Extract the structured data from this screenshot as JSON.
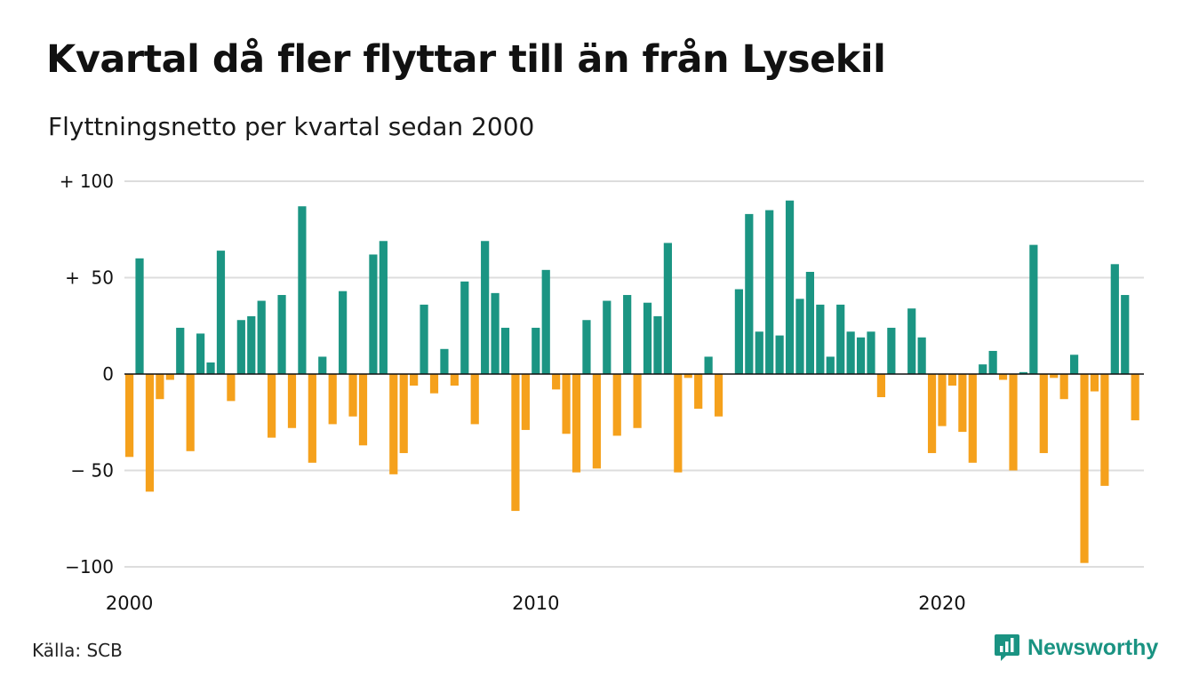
{
  "title": "Kvartal då fler flyttar till än från Lysekil",
  "subtitle": "Flyttningsnetto per kvartal sedan 2000",
  "source": "Källa: SCB",
  "brand": {
    "name": "Newsworthy",
    "icon": "newsworthy-logo-icon"
  },
  "colors": {
    "positive": "#1b9583",
    "negative": "#f5a11c",
    "grid": "#dddddd",
    "axis": "#111111"
  },
  "chart_data": {
    "type": "bar",
    "title": "Kvartal då fler flyttar till än från Lysekil",
    "subtitle": "Flyttningsnetto per kvartal sedan 2000",
    "xlabel": "",
    "ylabel": "",
    "x_start_year": 2000,
    "periods_per_year": 4,
    "ylim": [
      -100,
      100
    ],
    "yticks": [
      100,
      50,
      0,
      -50,
      -100
    ],
    "ytick_labels": [
      "+ 100",
      "+  50",
      "0",
      "− 50",
      "−100"
    ],
    "xtick_labels": [
      "2000",
      "2010",
      "2020"
    ],
    "xtick_years": [
      2000,
      2010,
      2020
    ],
    "grid": true,
    "values": [
      -43,
      60,
      -61,
      -13,
      -3,
      24,
      -40,
      21,
      6,
      64,
      -14,
      28,
      30,
      38,
      -33,
      41,
      -28,
      87,
      -46,
      9,
      -26,
      43,
      -22,
      -37,
      62,
      69,
      -52,
      -41,
      -6,
      36,
      -10,
      13,
      -6,
      48,
      -26,
      69,
      42,
      24,
      -71,
      -29,
      24,
      54,
      -8,
      -31,
      -51,
      28,
      -49,
      38,
      -32,
      41,
      -28,
      37,
      30,
      68,
      -51,
      -2,
      -18,
      9,
      -22,
      0,
      44,
      83,
      22,
      85,
      20,
      90,
      39,
      53,
      36,
      9,
      36,
      22,
      19,
      22,
      -12,
      24,
      0,
      34,
      19,
      -41,
      -27,
      -6,
      -30,
      -46,
      5,
      12,
      -3,
      -50,
      1,
      67,
      -41,
      -2,
      -13,
      10,
      -98,
      -9,
      -58,
      57,
      41,
      -24
    ]
  }
}
